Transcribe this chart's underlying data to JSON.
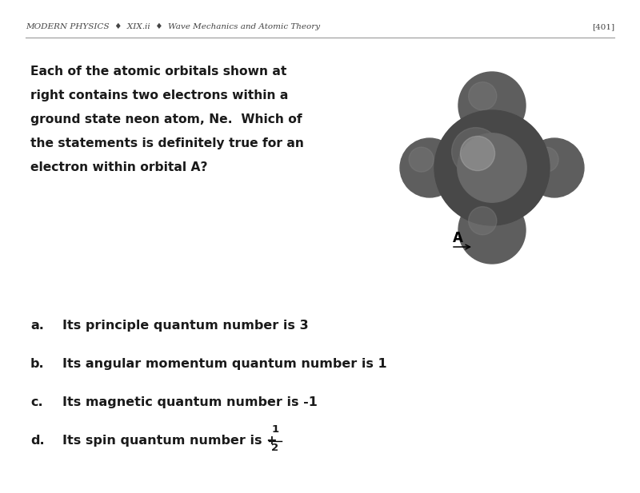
{
  "header_left": "MODERN PHYSICS  ♦  XIX.ii  ♦  Wave Mechanics and Atomic Theory",
  "header_right": "[401]",
  "question_text": "Each of the atomic orbitals shown at\nright contains two electrons within a\nground state neon atom, Ne.  Which of\nthe statements is definitely true for an\nelectron within orbital A?",
  "options": [
    {
      "label": "a.",
      "text": "Its principle quantum number is 3"
    },
    {
      "label": "b.",
      "text": "Its angular momentum quantum number is 1"
    },
    {
      "label": "c.",
      "text": "Its magnetic quantum number is -1"
    },
    {
      "label": "d.",
      "text": "Its spin quantum number is +"
    }
  ],
  "option_d_fraction_num": "1",
  "option_d_fraction_den": "2",
  "background_color": "#ffffff",
  "text_color": "#1a1a1a",
  "header_color": "#444444",
  "line_color": "#999999"
}
